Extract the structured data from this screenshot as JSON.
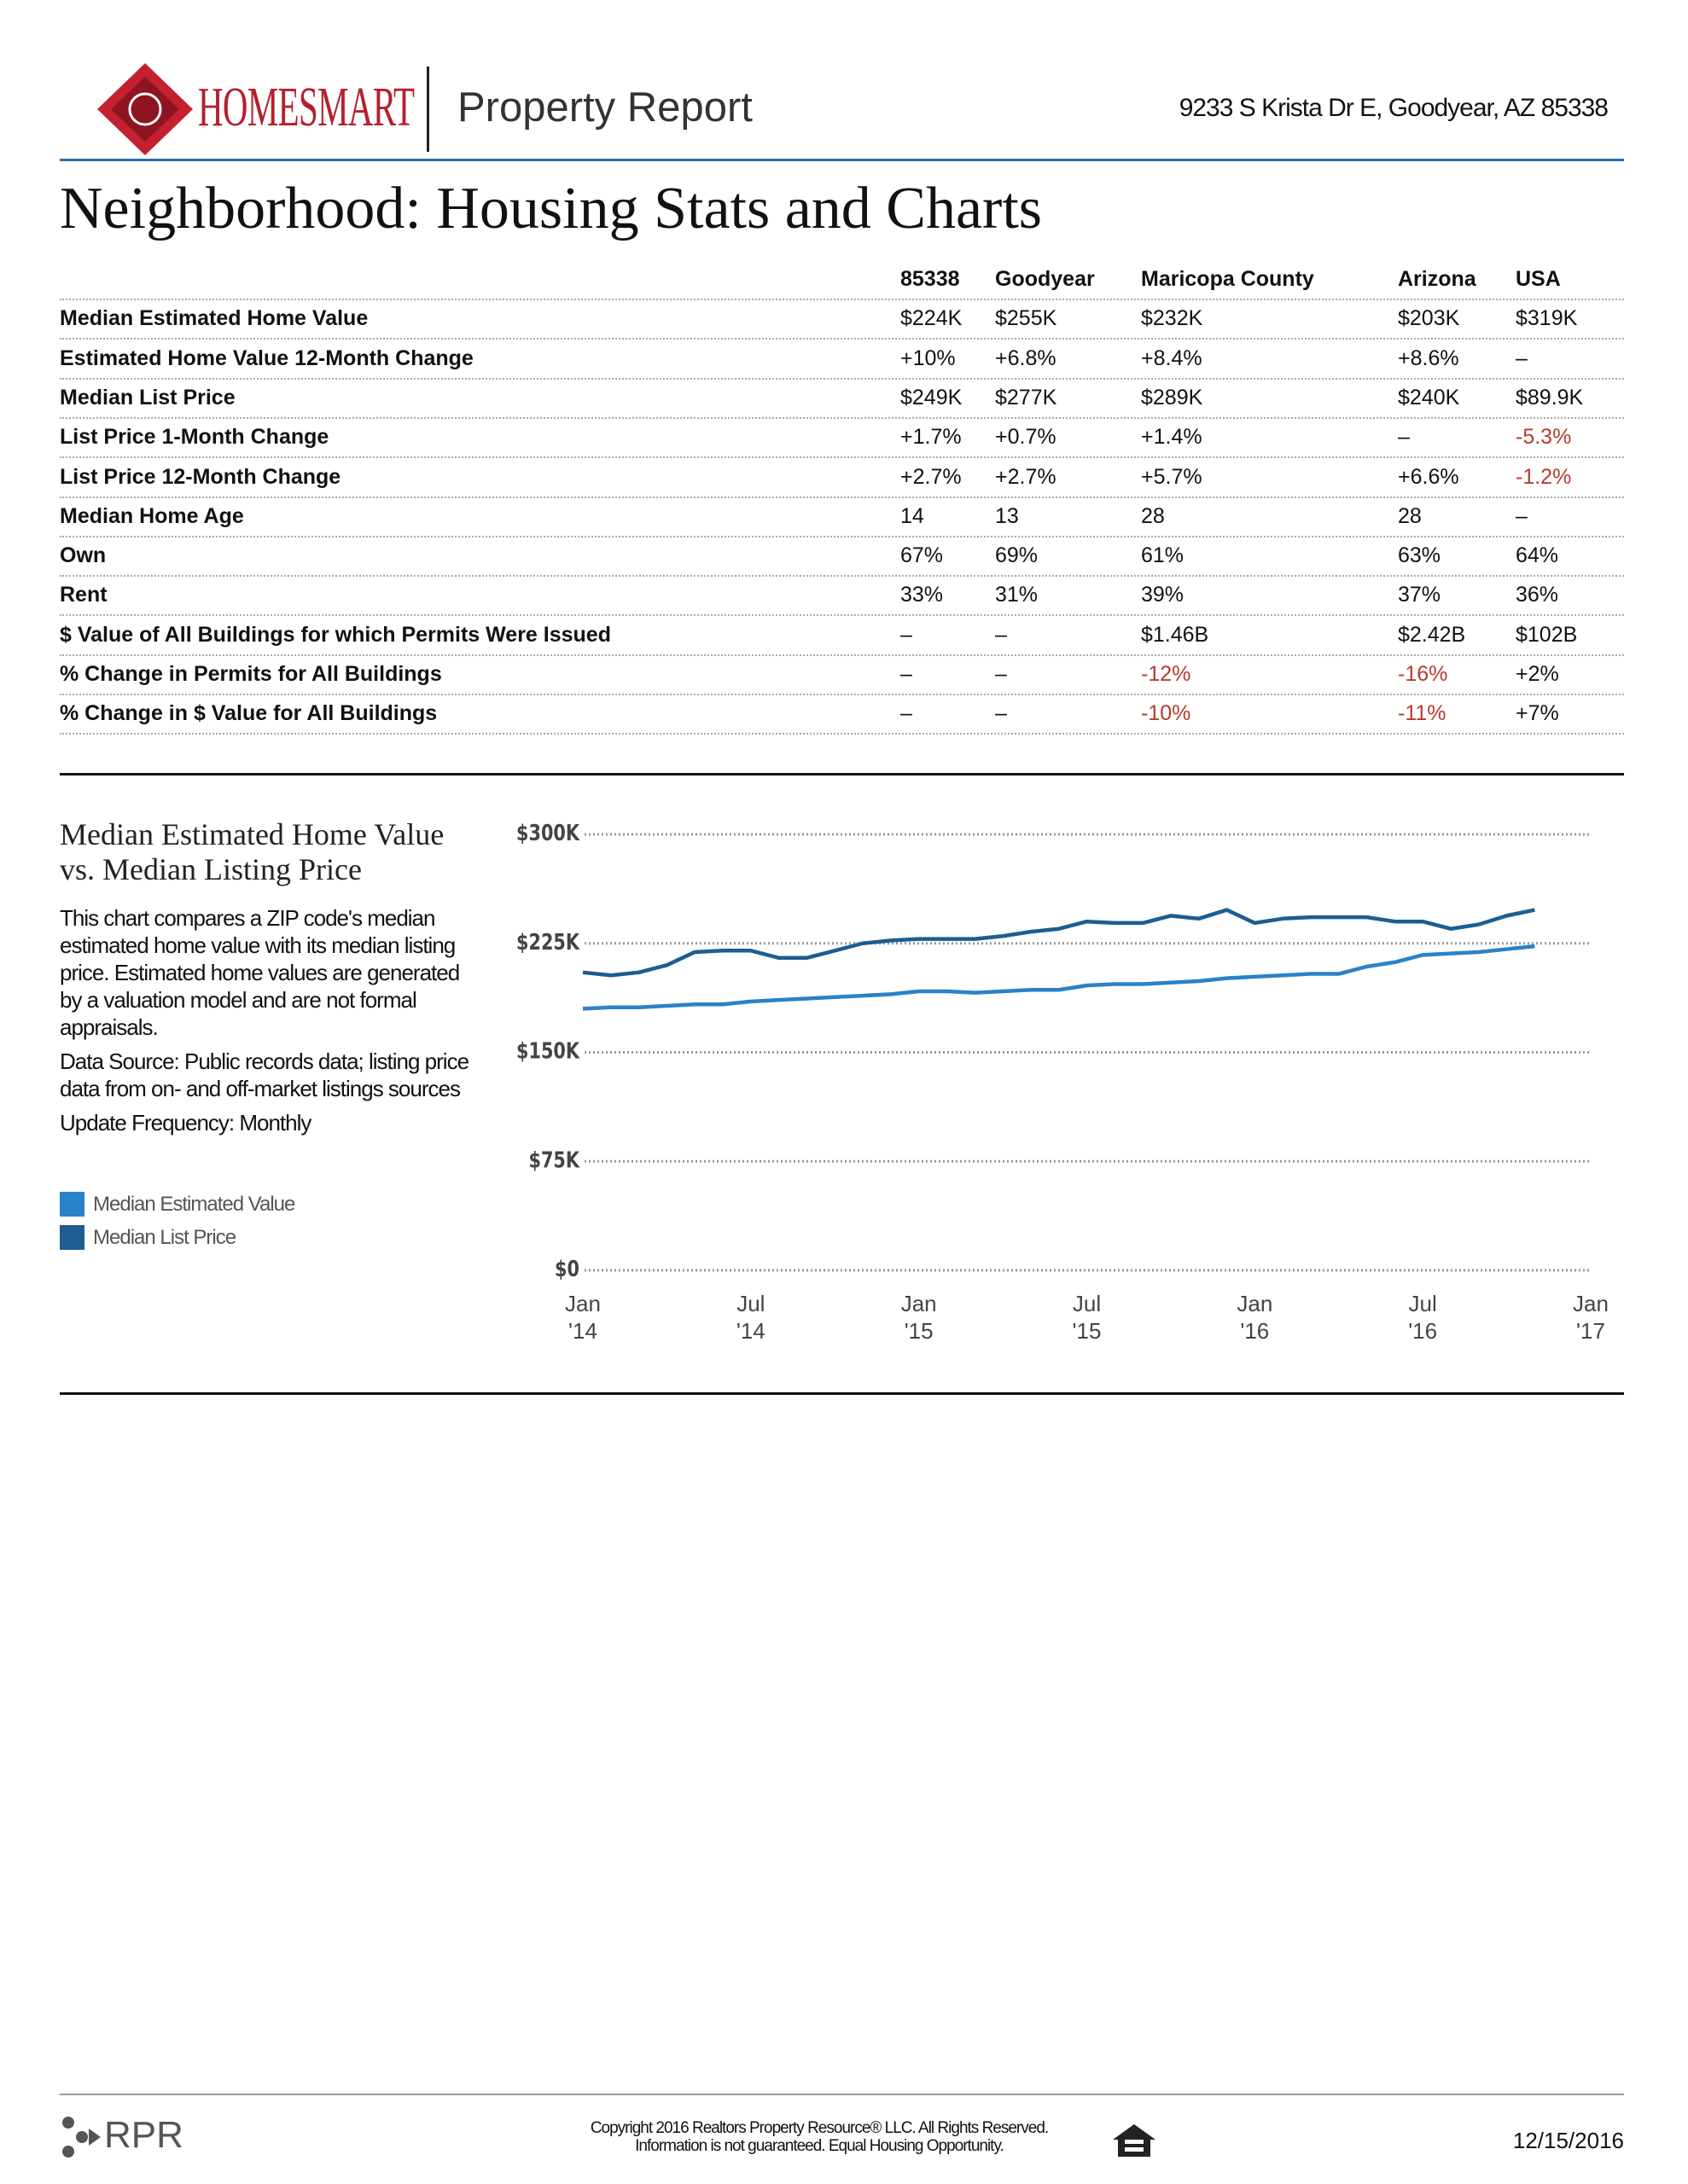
{
  "header": {
    "brand": "HOMESMART",
    "report": "Property Report",
    "address": "9233 S Krista Dr E, Goodyear, AZ 85338"
  },
  "title": "Neighborhood: Housing Stats and Charts",
  "table": {
    "columns": [
      "85338",
      "Goodyear",
      "Maricopa County",
      "Arizona",
      "USA"
    ],
    "rows": [
      {
        "label": "Median Estimated Home Value",
        "cells": [
          "$224K",
          "$255K",
          "$232K",
          "$203K",
          "$319K"
        ]
      },
      {
        "label": "Estimated Home Value 12-Month Change",
        "cells": [
          "+10%",
          "+6.8%",
          "+8.4%",
          "+8.6%",
          "–"
        ]
      },
      {
        "label": "Median List Price",
        "cells": [
          "$249K",
          "$277K",
          "$289K",
          "$240K",
          "$89.9K"
        ]
      },
      {
        "label": "List Price 1-Month Change",
        "cells": [
          "+1.7%",
          "+0.7%",
          "+1.4%",
          "–",
          "-5.3%"
        ]
      },
      {
        "label": "List Price 12-Month Change",
        "cells": [
          "+2.7%",
          "+2.7%",
          "+5.7%",
          "+6.6%",
          "-1.2%"
        ]
      },
      {
        "label": "Median Home Age",
        "cells": [
          "14",
          "13",
          "28",
          "28",
          "–"
        ]
      },
      {
        "label": "Own",
        "cells": [
          "67%",
          "69%",
          "61%",
          "63%",
          "64%"
        ]
      },
      {
        "label": "Rent",
        "cells": [
          "33%",
          "31%",
          "39%",
          "37%",
          "36%"
        ]
      },
      {
        "label": "$ Value of All Buildings for which Permits Were Issued",
        "cells": [
          "–",
          "–",
          "$1.46B",
          "$2.42B",
          "$102B"
        ]
      },
      {
        "label": "% Change in Permits for All Buildings",
        "cells": [
          "–",
          "–",
          "-12%",
          "-16%",
          "+2%"
        ]
      },
      {
        "label": "% Change in $ Value for All Buildings",
        "cells": [
          "–",
          "–",
          "-10%",
          "-11%",
          "+7%"
        ]
      }
    ]
  },
  "chart_data": {
    "type": "line",
    "title": "Median Estimated Home Value vs. Median Listing Price",
    "description": [
      "This chart compares a ZIP code's median estimated home value with its median listing price. Estimated home values are generated by a valuation model and are not formal appraisals.",
      "Data Source: Public records data; listing price data from on- and off-market listings sources",
      "Update Frequency: Monthly"
    ],
    "x": [
      "2014-01",
      "2014-02",
      "2014-03",
      "2014-04",
      "2014-05",
      "2014-06",
      "2014-07",
      "2014-08",
      "2014-09",
      "2014-10",
      "2014-11",
      "2014-12",
      "2015-01",
      "2015-02",
      "2015-03",
      "2015-04",
      "2015-05",
      "2015-06",
      "2015-07",
      "2015-08",
      "2015-09",
      "2015-10",
      "2015-11",
      "2015-12",
      "2016-01",
      "2016-02",
      "2016-03",
      "2016-04",
      "2016-05",
      "2016-06",
      "2016-07",
      "2016-08",
      "2016-09",
      "2016-10",
      "2016-11"
    ],
    "series": [
      {
        "name": "Median Estimated Value",
        "color": "#2a82c8",
        "values": [
          180000,
          181000,
          181000,
          182000,
          183000,
          183000,
          185000,
          186000,
          187000,
          188000,
          189000,
          190000,
          192000,
          192000,
          191000,
          192000,
          193000,
          193000,
          196000,
          197000,
          197000,
          198000,
          199000,
          201000,
          202000,
          203000,
          204000,
          204000,
          209000,
          212000,
          217000,
          218000,
          219000,
          221000,
          223000
        ]
      },
      {
        "name": "Median List Price",
        "color": "#1d5d92",
        "values": [
          205000,
          203000,
          205000,
          210000,
          219000,
          220000,
          220000,
          215000,
          215000,
          220000,
          225000,
          227000,
          228000,
          228000,
          228000,
          230000,
          233000,
          235000,
          240000,
          239000,
          239000,
          244000,
          242000,
          248000,
          239000,
          242000,
          243000,
          243000,
          243000,
          240000,
          240000,
          235000,
          238000,
          244000,
          248000
        ]
      }
    ],
    "xlim": [
      "2014-01",
      "2017-01"
    ],
    "xticks": [
      {
        "value": "2014-01",
        "label": "Jan '14"
      },
      {
        "value": "2014-07",
        "label": "Jul '14"
      },
      {
        "value": "2015-01",
        "label": "Jan '15"
      },
      {
        "value": "2015-07",
        "label": "Jul '15"
      },
      {
        "value": "2016-01",
        "label": "Jan '16"
      },
      {
        "value": "2016-07",
        "label": "Jul '16"
      },
      {
        "value": "2017-01",
        "label": "Jan '17"
      }
    ],
    "ylim": [
      0,
      300000
    ],
    "yticks": [
      {
        "value": 0,
        "label": "$0"
      },
      {
        "value": 75000,
        "label": "$75K"
      },
      {
        "value": 150000,
        "label": "$150K"
      },
      {
        "value": 225000,
        "label": "$225K"
      },
      {
        "value": 300000,
        "label": "$300K"
      }
    ],
    "grid": true
  },
  "footer": {
    "logo": "RPR",
    "copyright": "Copyright 2016 Realtors Property Resource® LLC. All Rights Reserved.",
    "disclaimer": "Information is not guaranteed. Equal Housing Opportunity.",
    "date": "12/15/2016"
  }
}
